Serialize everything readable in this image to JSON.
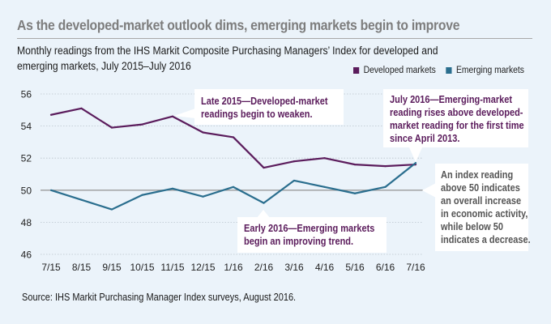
{
  "title": "As the developed-market outlook dims, emerging markets begin to improve",
  "subtitle": "Monthly readings from the IHS Markit Composite Purchasing Managers’ Index for developed and emerging markets, July 2015–July 2016",
  "source": "Source: IHS Markit Purchasing Manager Index surveys, August 2016.",
  "annotations": {
    "late_2015": [
      "Late 2015—Developed-market",
      "readings begin to weaken."
    ],
    "july_2016": [
      "July 2016—Emerging-market",
      "reading rises above developed-",
      "market reading for the first time",
      "since April 2013."
    ],
    "early_2016": [
      "Early 2016—Emerging markets",
      "begin an improving trend."
    ],
    "index_note": [
      "An index reading",
      "above 50 indicates",
      "an overall increase",
      "in economic activity,",
      "while below 50",
      "indicates a decrease."
    ]
  },
  "chart_data": {
    "type": "line",
    "categories": [
      "7/15",
      "8/15",
      "9/15",
      "10/15",
      "11/15",
      "12/15",
      "1/16",
      "2/16",
      "3/16",
      "4/16",
      "5/16",
      "6/16",
      "7/16"
    ],
    "series": [
      {
        "name": "Developed markets",
        "color": "#5b1c5c",
        "values": [
          54.7,
          55.1,
          53.9,
          54.1,
          54.6,
          53.6,
          53.3,
          51.4,
          51.8,
          52.0,
          51.6,
          51.5,
          51.6
        ]
      },
      {
        "name": "Emerging markets",
        "color": "#2a6e8e",
        "values": [
          50.0,
          49.4,
          48.8,
          49.7,
          50.1,
          49.6,
          50.2,
          49.2,
          50.6,
          50.2,
          49.8,
          50.2,
          51.7
        ]
      }
    ],
    "ylim": [
      46,
      56
    ],
    "yticks": [
      46,
      48,
      50,
      52,
      54,
      56
    ],
    "reference_line": 50,
    "grid": true,
    "legend_placement": "top-right"
  }
}
